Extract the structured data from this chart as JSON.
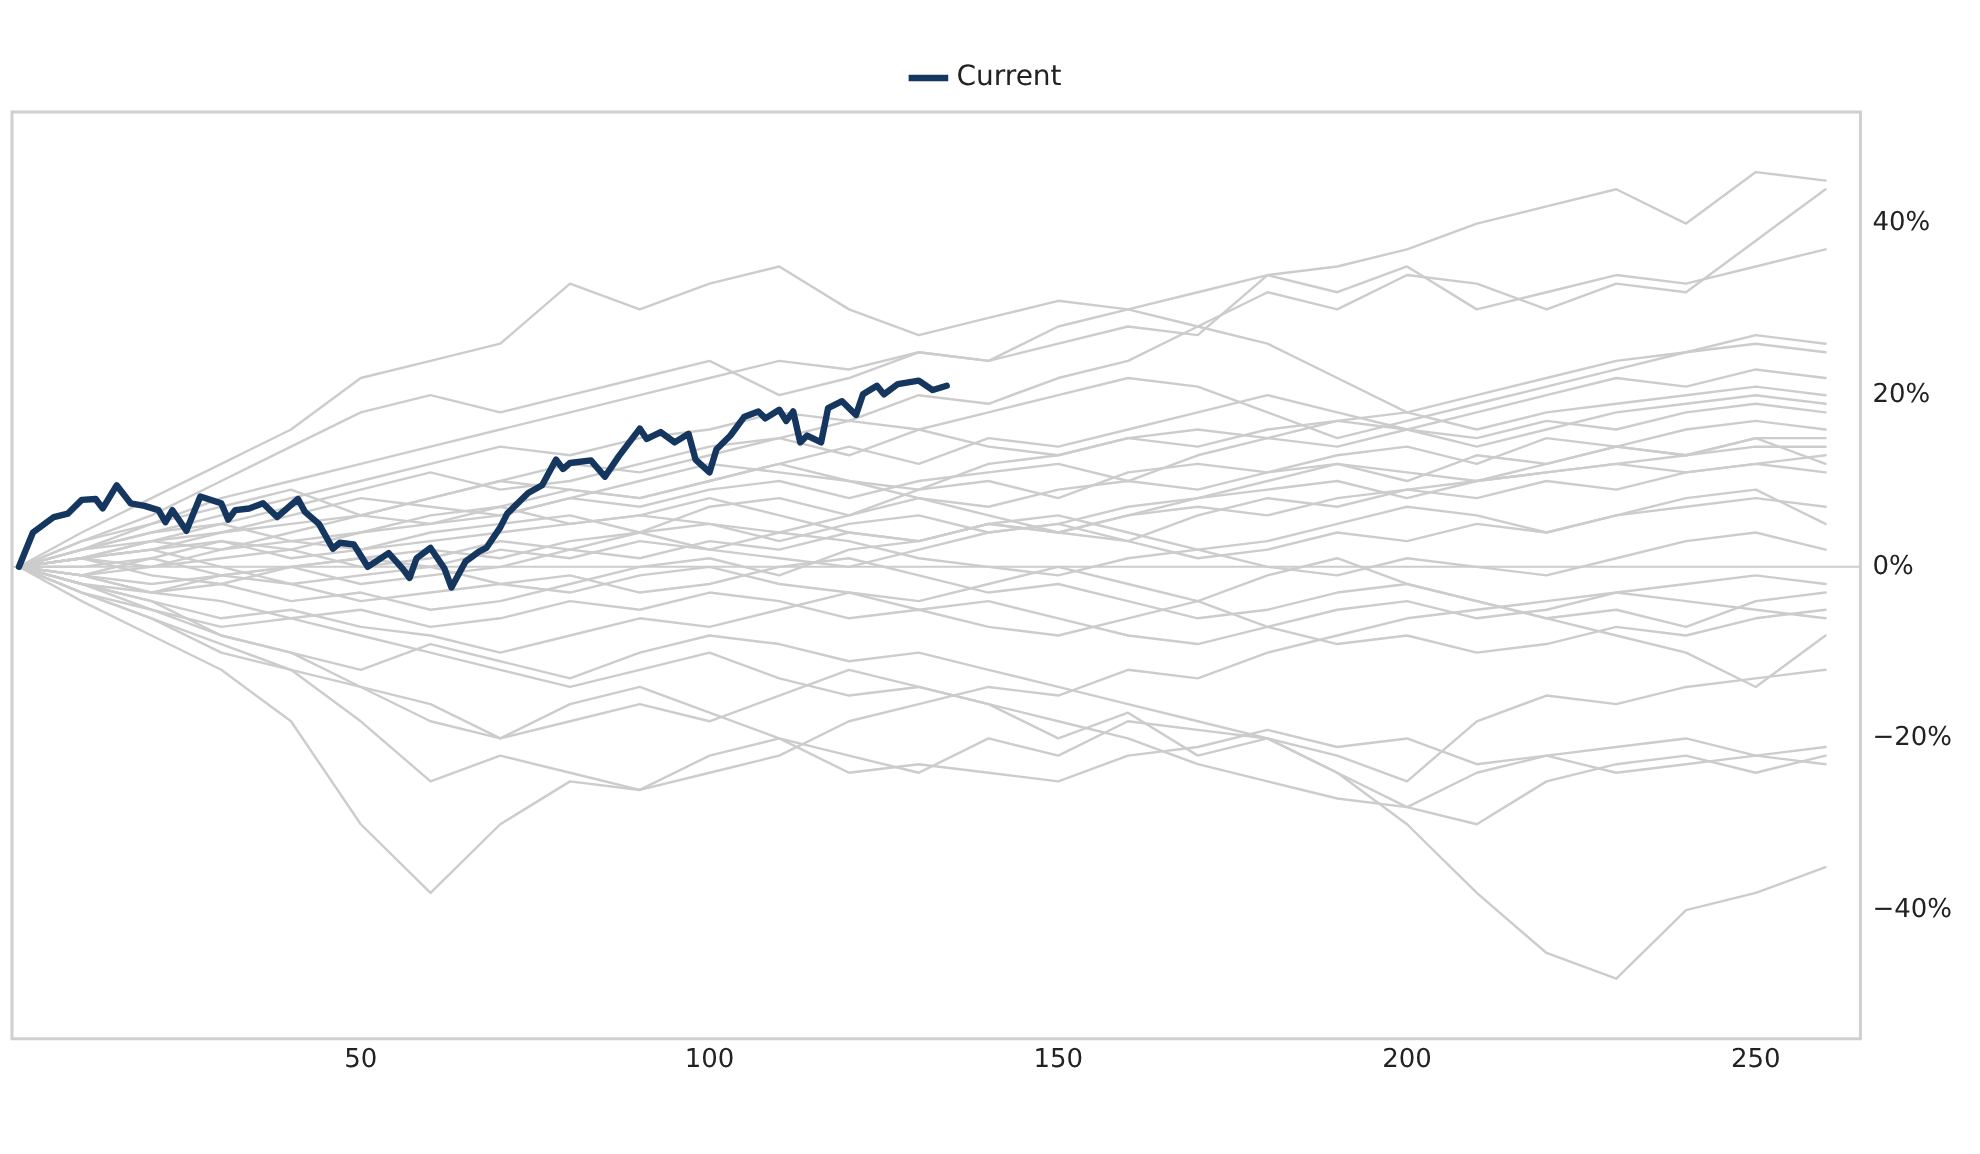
{
  "chart_data": {
    "type": "line",
    "legend": "top",
    "grid": false,
    "marker": "none",
    "xlim": [
      0,
      265
    ],
    "xticks": [
      50,
      100,
      150,
      200,
      250
    ],
    "ylim": [
      -55,
      53
    ],
    "yticks": [
      {
        "value": -40,
        "label": "−40%"
      },
      {
        "value": -20,
        "label": "−20%"
      },
      {
        "value": 0,
        "label": "0%"
      },
      {
        "value": 20,
        "label": "20%"
      },
      {
        "value": 40,
        "label": "40%"
      }
    ],
    "ref_lines": [
      {
        "axis": "y",
        "value": 0,
        "color": "#cccccc"
      }
    ],
    "x": [
      1,
      10,
      20,
      30,
      40,
      50,
      60,
      70,
      80,
      90,
      100,
      110,
      120,
      130,
      140,
      150,
      160,
      170,
      180,
      190,
      200,
      210,
      220,
      230,
      240,
      250,
      260
    ],
    "series": [
      {
        "color": "#cccccc",
        "values": [
          0,
          4,
          8,
          12,
          16,
          22,
          24,
          26,
          33,
          30,
          33,
          35,
          30,
          27,
          29,
          31,
          30,
          32,
          34,
          35,
          37,
          40,
          42,
          44,
          40,
          46,
          45
        ]
      },
      {
        "color": "#cccccc",
        "values": [
          0,
          3,
          6,
          10,
          14,
          18,
          20,
          18,
          20,
          22,
          24,
          20,
          22,
          25,
          24,
          28,
          30,
          28,
          32,
          30,
          34,
          33,
          30,
          33,
          32,
          38,
          44
        ]
      },
      {
        "color": "#cccccc",
        "values": [
          0,
          2,
          5,
          8,
          10,
          12,
          14,
          16,
          18,
          20,
          22,
          24,
          23,
          25,
          24,
          26,
          28,
          27,
          34,
          32,
          35,
          30,
          32,
          34,
          33,
          35,
          37
        ]
      },
      {
        "color": "#cccccc",
        "values": [
          0,
          2,
          4,
          6,
          8,
          10,
          12,
          14,
          13,
          15,
          16,
          18,
          17,
          20,
          19,
          22,
          24,
          28,
          26,
          22,
          18,
          20,
          22,
          24,
          25,
          27,
          26
        ]
      },
      {
        "color": "#cccccc",
        "values": [
          0,
          1,
          3,
          5,
          7,
          9,
          11,
          9,
          10,
          12,
          14,
          15,
          13,
          16,
          18,
          20,
          22,
          21,
          18,
          15,
          17,
          19,
          21,
          23,
          25,
          26,
          25
        ]
      },
      {
        "color": "#cccccc",
        "values": [
          0,
          1,
          2,
          4,
          5,
          6,
          8,
          10,
          9,
          8,
          10,
          12,
          14,
          12,
          15,
          14,
          16,
          18,
          20,
          18,
          16,
          18,
          20,
          22,
          21,
          23,
          22
        ]
      },
      {
        "color": "#cccccc",
        "values": [
          0,
          2,
          3,
          4,
          6,
          8,
          7,
          6,
          8,
          10,
          12,
          11,
          10,
          9,
          12,
          13,
          15,
          14,
          16,
          17,
          18,
          16,
          18,
          19,
          20,
          21,
          20
        ]
      },
      {
        "color": "#cccccc",
        "values": [
          0,
          -1,
          1,
          3,
          2,
          4,
          5,
          6,
          8,
          7,
          9,
          10,
          8,
          10,
          11,
          12,
          10,
          13,
          15,
          14,
          16,
          15,
          17,
          16,
          18,
          19,
          18
        ]
      },
      {
        "color": "#cccccc",
        "values": [
          0,
          1,
          0,
          2,
          3,
          2,
          4,
          5,
          6,
          4,
          7,
          8,
          6,
          9,
          10,
          8,
          11,
          12,
          11,
          13,
          14,
          12,
          15,
          14,
          16,
          17,
          16
        ]
      },
      {
        "color": "#cccccc",
        "values": [
          0,
          1,
          2,
          3,
          1,
          2,
          3,
          4,
          5,
          6,
          5,
          4,
          6,
          8,
          7,
          9,
          10,
          9,
          11,
          12,
          10,
          13,
          12,
          14,
          13,
          15,
          15
        ]
      },
      {
        "color": "#cccccc",
        "values": [
          0,
          -1,
          0,
          1,
          2,
          0,
          1,
          3,
          2,
          4,
          5,
          3,
          5,
          6,
          4,
          5,
          7,
          8,
          9,
          10,
          8,
          10,
          11,
          12,
          13,
          14,
          14
        ]
      },
      {
        "color": "#cccccc",
        "values": [
          0,
          2,
          4,
          5,
          3,
          4,
          6,
          7,
          5,
          6,
          8,
          6,
          4,
          3,
          5,
          4,
          6,
          8,
          10,
          12,
          11,
          10,
          12,
          14,
          13,
          15,
          12
        ]
      },
      {
        "color": "#cccccc",
        "values": [
          0,
          1,
          -1,
          -2,
          0,
          1,
          2,
          1,
          3,
          4,
          2,
          1,
          0,
          2,
          4,
          5,
          3,
          6,
          8,
          7,
          9,
          8,
          10,
          9,
          11,
          12,
          11
        ]
      },
      {
        "color": "#cccccc",
        "values": [
          0,
          -1,
          -2,
          -1,
          0,
          -2,
          -1,
          0,
          2,
          1,
          3,
          2,
          4,
          3,
          5,
          6,
          4,
          2,
          3,
          5,
          7,
          6,
          4,
          6,
          8,
          9,
          5
        ]
      },
      {
        "color": "#cccccc",
        "values": [
          0,
          0,
          1,
          -1,
          0,
          1,
          0,
          2,
          1,
          3,
          2,
          4,
          3,
          1,
          0,
          -1,
          1,
          2,
          0,
          -1,
          1,
          0,
          -1,
          1,
          3,
          4,
          2
        ]
      },
      {
        "color": "#cccccc",
        "values": [
          0,
          -2,
          -3,
          -1,
          -2,
          -4,
          -3,
          -2,
          -1,
          -3,
          -2,
          0,
          1,
          -1,
          -3,
          -2,
          -4,
          -6,
          -5,
          -3,
          -2,
          -4,
          -6,
          -5,
          -7,
          -4,
          -3
        ]
      },
      {
        "color": "#cccccc",
        "values": [
          0,
          -1,
          -3,
          -4,
          -6,
          -5,
          -7,
          -6,
          -4,
          -5,
          -3,
          -4,
          -6,
          -5,
          -7,
          -8,
          -6,
          -4,
          -7,
          -9,
          -8,
          -10,
          -9,
          -7,
          -8,
          -6,
          -5
        ]
      },
      {
        "color": "#cccccc",
        "values": [
          0,
          -2,
          -4,
          -6,
          -5,
          -7,
          -8,
          -10,
          -8,
          -6,
          -7,
          -5,
          -3,
          -4,
          -2,
          0,
          -2,
          -4,
          -1,
          1,
          -2,
          -4,
          -6,
          -8,
          -10,
          -14,
          -8
        ]
      },
      {
        "color": "#cccccc",
        "values": [
          0,
          -3,
          -5,
          -8,
          -10,
          -12,
          -9,
          -11,
          -13,
          -10,
          -8,
          -9,
          -11,
          -10,
          -12,
          -14,
          -16,
          -18,
          -20,
          -22,
          -25,
          -18,
          -15,
          -16,
          -14,
          -13,
          -12
        ]
      },
      {
        "color": "#cccccc",
        "values": [
          0,
          -2,
          -5,
          -7,
          -6,
          -8,
          -10,
          -12,
          -14,
          -12,
          -10,
          -13,
          -15,
          -14,
          -16,
          -18,
          -20,
          -23,
          -25,
          -27,
          -28,
          -24,
          -22,
          -21,
          -20,
          -22,
          -21
        ]
      },
      {
        "color": "#cccccc",
        "values": [
          0,
          -3,
          -6,
          -10,
          -12,
          -14,
          -18,
          -20,
          -16,
          -14,
          -17,
          -20,
          -22,
          -24,
          -20,
          -22,
          -18,
          -19,
          -20,
          -24,
          -28,
          -30,
          -25,
          -23,
          -22,
          -24,
          -22
        ]
      },
      {
        "color": "#cccccc",
        "values": [
          0,
          -4,
          -8,
          -12,
          -18,
          -30,
          -38,
          -30,
          -25,
          -26,
          -22,
          -20,
          -24,
          -23,
          -24,
          -25,
          -22,
          -21,
          -19,
          -21,
          -20,
          -23,
          -22,
          -24,
          -23,
          -22,
          -23
        ]
      },
      {
        "color": "#cccccc",
        "values": [
          0,
          -2,
          -4,
          -8,
          -10,
          -14,
          -16,
          -20,
          -18,
          -16,
          -18,
          -15,
          -12,
          -14,
          -16,
          -20,
          -17,
          -22,
          -20,
          -24,
          -30,
          -38,
          -45,
          -48,
          -40,
          -38,
          -35
        ]
      },
      {
        "color": "#cccccc",
        "values": [
          0,
          -3,
          -6,
          -9,
          -12,
          -18,
          -25,
          -22,
          -24,
          -26,
          -24,
          -22,
          -18,
          -16,
          -14,
          -15,
          -12,
          -13,
          -10,
          -8,
          -6,
          -5,
          -4,
          -3,
          -2,
          -1,
          -2
        ]
      },
      {
        "color": "#cccccc",
        "values": [
          0,
          1,
          3,
          2,
          4,
          6,
          5,
          7,
          9,
          8,
          10,
          12,
          10,
          8,
          6,
          4,
          3,
          1,
          2,
          4,
          3,
          5,
          4,
          6,
          7,
          8,
          7
        ]
      },
      {
        "color": "#cccccc",
        "values": [
          0,
          3,
          5,
          7,
          9,
          6,
          8,
          10,
          12,
          11,
          13,
          15,
          17,
          16,
          14,
          13,
          15,
          16,
          15,
          17,
          16,
          14,
          16,
          18,
          19,
          20,
          19
        ]
      },
      {
        "color": "#cccccc",
        "values": [
          0,
          -1,
          -3,
          -2,
          -4,
          -3,
          -5,
          -4,
          -2,
          0,
          1,
          -1,
          2,
          3,
          5,
          4,
          6,
          7,
          6,
          8,
          9,
          10,
          11,
          12,
          11,
          12,
          13
        ]
      },
      {
        "color": "#cccccc",
        "values": [
          0,
          1,
          2,
          0,
          -2,
          -1,
          0,
          -2,
          -3,
          -1,
          0,
          -2,
          -3,
          -5,
          -4,
          -6,
          -8,
          -9,
          -7,
          -5,
          -4,
          -6,
          -5,
          -3,
          -4,
          -5,
          -6
        ]
      },
      {
        "name": "Current",
        "color": "#14365f",
        "x": [
          1,
          3,
          6,
          8,
          10,
          12,
          13,
          15,
          17,
          19,
          21,
          22,
          23,
          25,
          27,
          30,
          31,
          32,
          34,
          36,
          38,
          41,
          42,
          44,
          46,
          47,
          49,
          51,
          54,
          56,
          57,
          58,
          60,
          62,
          63,
          65,
          67,
          68,
          70,
          71,
          74,
          76,
          78,
          79,
          80,
          83,
          85,
          87,
          90,
          91,
          93,
          95,
          97,
          98,
          100,
          101,
          103,
          105,
          107,
          108,
          110,
          111,
          112,
          113,
          114,
          116,
          117,
          119,
          121,
          122,
          124,
          125,
          127,
          130,
          132,
          134
        ],
        "values": [
          0,
          4,
          5.8,
          6.2,
          7.8,
          7.9,
          6.8,
          9.5,
          7.4,
          7.1,
          6.6,
          5.2,
          6.6,
          4.2,
          8.2,
          7.4,
          5.5,
          6.6,
          6.8,
          7.4,
          5.8,
          7.9,
          6.4,
          5,
          2.1,
          2.8,
          2.6,
          0,
          1.6,
          -0.2,
          -1.3,
          1,
          2.2,
          -0.2,
          -2.4,
          0.6,
          1.8,
          2.2,
          4.6,
          6.2,
          8.6,
          9.5,
          12.5,
          11.4,
          12.1,
          12.4,
          10.5,
          12.9,
          16.1,
          14.9,
          15.7,
          14.5,
          15.5,
          12.5,
          11,
          13.7,
          15.3,
          17.5,
          18.1,
          17.3,
          18.3,
          17,
          18.1,
          14.5,
          15.3,
          14.5,
          18.5,
          19.3,
          17.7,
          20.1,
          21.1,
          20.1,
          21.3,
          21.7,
          20.6,
          21.1
        ]
      }
    ]
  }
}
